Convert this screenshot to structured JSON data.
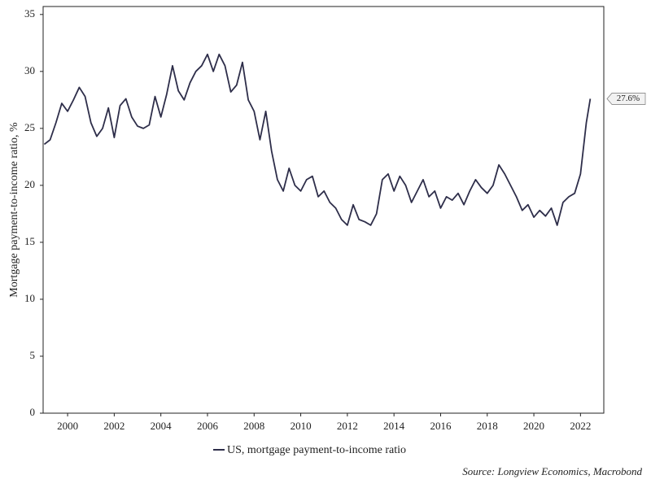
{
  "chart_data": {
    "type": "line",
    "y_label": "Mortgage payment-to-income ratio, %",
    "source": "Source: Longview Economics, Macrobond",
    "annotations": [
      "27.6%"
    ],
    "xlim": [
      1998.95,
      2023.0
    ],
    "ylim": [
      0,
      35.7
    ],
    "xticks": [
      2000,
      2002,
      2004,
      2006,
      2008,
      2010,
      2012,
      2014,
      2016,
      2018,
      2020,
      2022
    ],
    "yticks": [
      0,
      5,
      10,
      15,
      20,
      25,
      30,
      35
    ],
    "x": [
      1999.0,
      1999.25,
      1999.5,
      1999.75,
      2000.0,
      2000.25,
      2000.5,
      2000.75,
      2001.0,
      2001.25,
      2001.5,
      2001.75,
      2002.0,
      2002.25,
      2002.5,
      2002.75,
      2003.0,
      2003.25,
      2003.5,
      2003.75,
      2004.0,
      2004.25,
      2004.5,
      2004.75,
      2005.0,
      2005.25,
      2005.5,
      2005.75,
      2006.0,
      2006.25,
      2006.5,
      2006.75,
      2007.0,
      2007.25,
      2007.5,
      2007.75,
      2008.0,
      2008.25,
      2008.5,
      2008.75,
      2009.0,
      2009.25,
      2009.5,
      2009.75,
      2010.0,
      2010.25,
      2010.5,
      2010.75,
      2011.0,
      2011.25,
      2011.5,
      2011.75,
      2012.0,
      2012.25,
      2012.5,
      2012.75,
      2013.0,
      2013.25,
      2013.5,
      2013.75,
      2014.0,
      2014.25,
      2014.5,
      2014.75,
      2015.0,
      2015.25,
      2015.5,
      2015.75,
      2016.0,
      2016.25,
      2016.5,
      2016.75,
      2017.0,
      2017.25,
      2017.5,
      2017.75,
      2018.0,
      2018.25,
      2018.5,
      2018.75,
      2019.0,
      2019.25,
      2019.5,
      2019.75,
      2020.0,
      2020.25,
      2020.5,
      2020.75,
      2021.0,
      2021.25,
      2021.5,
      2021.75,
      2022.0,
      2022.25,
      2022.42
    ],
    "series": [
      {
        "name": "US, mortgage payment-to-income ratio",
        "color": "#2e2e4a",
        "values": [
          23.6,
          24.0,
          25.5,
          27.2,
          26.5,
          27.5,
          28.6,
          27.8,
          25.5,
          24.3,
          25.0,
          26.8,
          24.2,
          27.0,
          27.6,
          26.0,
          25.2,
          25.0,
          25.3,
          27.8,
          26.0,
          28.0,
          30.5,
          28.3,
          27.5,
          29.0,
          30.0,
          30.5,
          31.5,
          30.0,
          31.5,
          30.5,
          28.2,
          28.8,
          30.8,
          27.5,
          26.5,
          24.0,
          26.5,
          23.0,
          20.5,
          19.5,
          21.5,
          20.0,
          19.5,
          20.5,
          20.8,
          19.0,
          19.5,
          18.5,
          18.0,
          17.0,
          16.5,
          18.3,
          17.0,
          16.8,
          16.5,
          17.5,
          20.5,
          21.0,
          19.5,
          20.8,
          20.0,
          18.5,
          19.5,
          20.5,
          19.0,
          19.5,
          18.0,
          19.0,
          18.7,
          19.3,
          18.3,
          19.5,
          20.5,
          19.8,
          19.3,
          20.0,
          21.8,
          21.0,
          20.0,
          19.0,
          17.8,
          18.3,
          17.2,
          17.8,
          17.3,
          18.0,
          16.5,
          18.5,
          19.0,
          19.3,
          21.0,
          25.5,
          27.6
        ]
      }
    ]
  }
}
